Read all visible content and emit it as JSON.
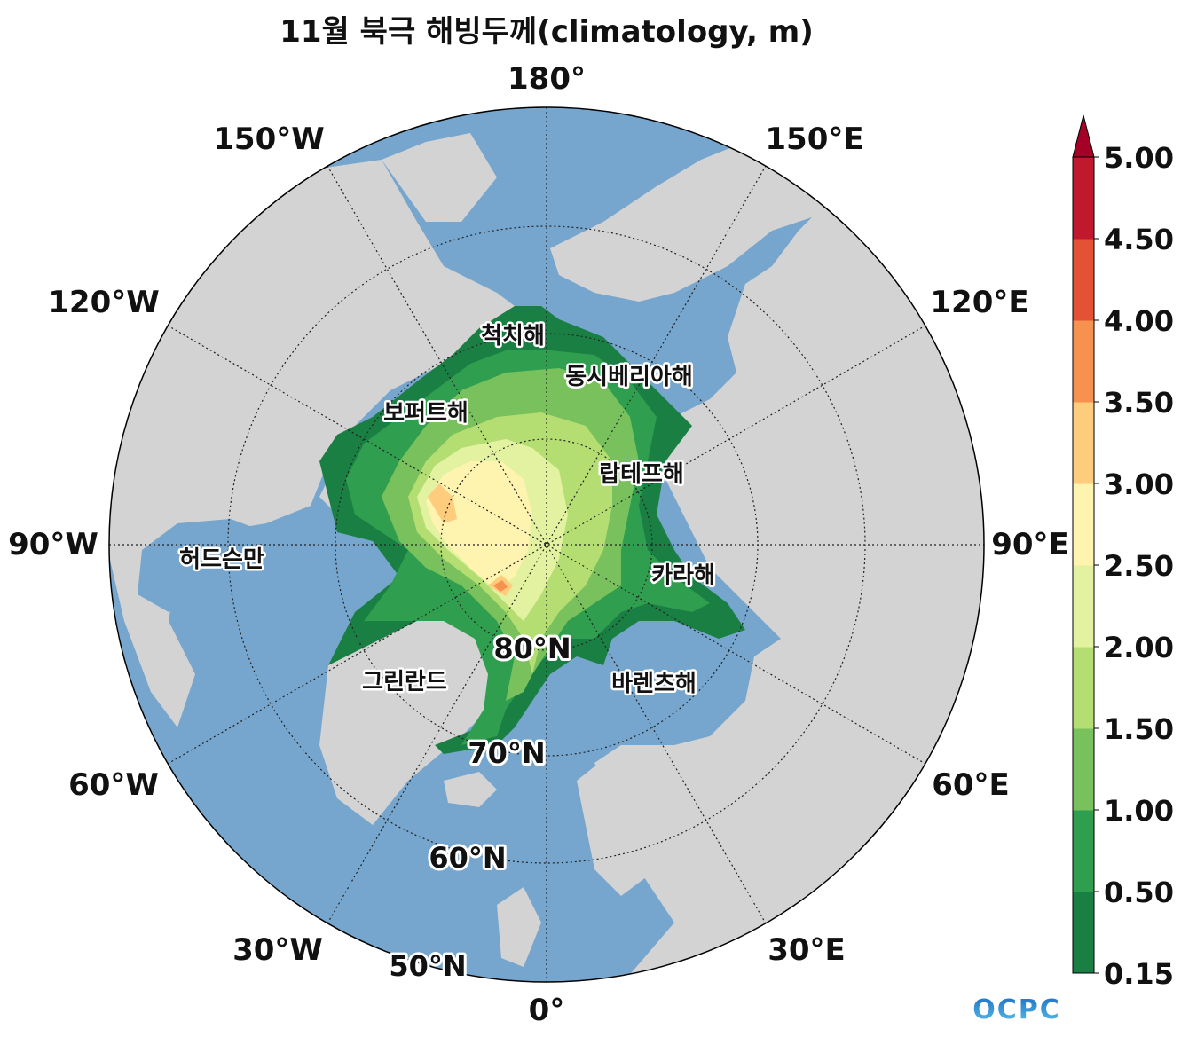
{
  "title": "11월 북극 해빙두께(climatology, m)",
  "longitude_labels": [
    "180°",
    "150°E",
    "120°E",
    "90°E",
    "60°E",
    "30°E",
    "0°",
    "30°W",
    "60°W",
    "90°W",
    "120°W",
    "150°W"
  ],
  "latitude_labels": [
    "80°N",
    "70°N",
    "60°N",
    "50°N"
  ],
  "sea_labels": {
    "chukchi": "척치해",
    "east_siberian": "동시베리아해",
    "beaufort": "보퍼트해",
    "laptev": "랍테프해",
    "hudson_bay": "허드슨만",
    "kara": "카라해",
    "greenland": "그린란드",
    "barents": "바렌츠해"
  },
  "colorbar": {
    "ticks": [
      "0.15",
      "0.50",
      "1.00",
      "1.50",
      "2.00",
      "2.50",
      "3.00",
      "3.50",
      "4.00",
      "4.50",
      "5.00"
    ],
    "colors": [
      "#1a7f43",
      "#2f9e4f",
      "#78c15d",
      "#b5de72",
      "#e3f2a0",
      "#fff3b0",
      "#fecc7d",
      "#f79150",
      "#e35234",
      "#c0182d"
    ],
    "extend_color": "#a50026"
  },
  "colors": {
    "ocean": "#76a6cd",
    "land": "#d3d3d3",
    "grid": "#222222"
  },
  "logo_text": "OCPC"
}
